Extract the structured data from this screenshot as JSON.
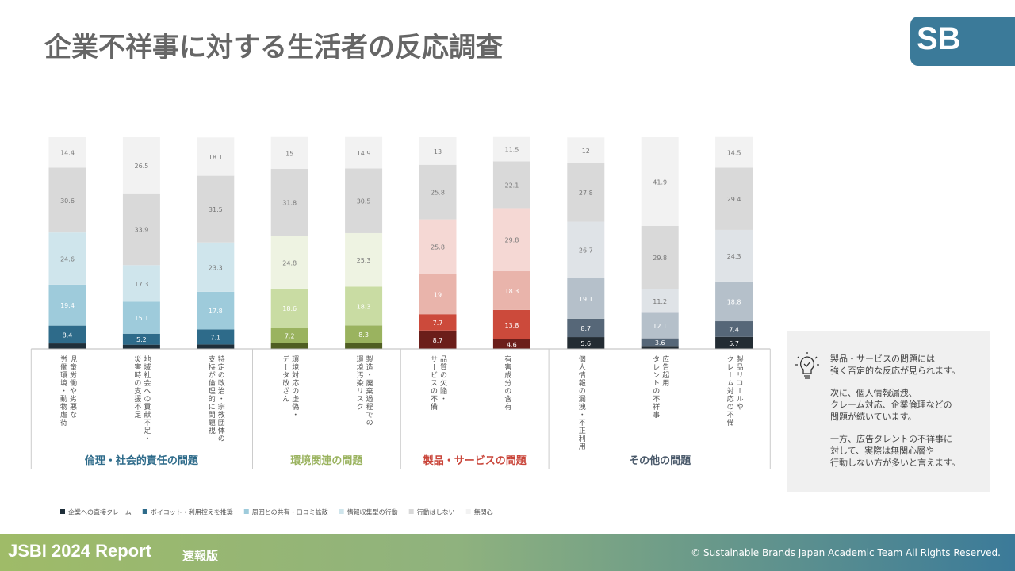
{
  "header": {
    "title": "企業不祥事に対する生活者の反応調査",
    "logo": "SB"
  },
  "chart_data": {
    "type": "stacked_bar",
    "ylim": [
      0,
      100
    ],
    "groups": [
      {
        "name": "倫理・社会的責任の問題",
        "color": "#2e6b8a",
        "segment_colors": [
          "#1f2f3a",
          "#2e6b8a",
          "#9ecbdb",
          "#cfe5ec",
          "#d9d9d9",
          "#f2f2f2"
        ],
        "categories": [
          "児童労働や劣悪な\n労働環境・動物虐待",
          "地域社会への貢献不足・\n災害時の支援不足",
          "特定の政治・宗教団体の\n支持が倫理的に問題視"
        ]
      },
      {
        "name": "環境関連の問題",
        "color": "#9ab35f",
        "segment_colors": [
          "#4f5e22",
          "#9ab35f",
          "#c9dca3",
          "#eef3e2",
          "#d9d9d9",
          "#f2f2f2"
        ],
        "categories": [
          "環境対応の虚偽・\nデータ改ざん",
          "製造・廃棄過程での\n環境汚染リスク"
        ]
      },
      {
        "name": "製品・サービスの問題",
        "color": "#c9453a",
        "segment_colors": [
          "#6b1e1a",
          "#cc4a3b",
          "#e9b4ab",
          "#f5d8d4",
          "#d9d9d9",
          "#f2f2f2"
        ],
        "categories": [
          "品質の欠陥・\nサービスの不備",
          "有害成分の含有"
        ]
      },
      {
        "name": "その他の問題",
        "color": "#4b5a6b",
        "segment_colors": [
          "#232c33",
          "#566778",
          "#b5c0ca",
          "#dfe3e7",
          "#d9d9d9",
          "#f2f2f2"
        ],
        "categories": [
          "個人情報の漏洩・不正利用",
          "広告起用\nタレントの不祥事",
          "製品リコールや\nクレーム対応の不備"
        ]
      }
    ],
    "series": [
      {
        "name": "企業への直接クレーム",
        "color": "#1f2f3a",
        "values": [
          2.6,
          2.0,
          2.1,
          2.7,
          2.8,
          8.7,
          4.6,
          5.6,
          1.4,
          5.7
        ]
      },
      {
        "name": "ボイコット・利用控えを推奨",
        "color": "#2e6b8a",
        "values": [
          8.4,
          5.2,
          7.1,
          7.2,
          8.3,
          7.7,
          13.8,
          8.7,
          3.6,
          7.4
        ]
      },
      {
        "name": "周囲との共有・口コミ拡散",
        "color": "#9ecbdb",
        "values": [
          19.4,
          15.1,
          17.8,
          18.6,
          18.3,
          19.0,
          18.3,
          19.1,
          12.1,
          18.8
        ]
      },
      {
        "name": "情報収集型の行動",
        "color": "#cfe5ec",
        "values": [
          24.6,
          17.3,
          23.3,
          24.8,
          25.3,
          25.8,
          29.8,
          26.7,
          11.2,
          24.3
        ]
      },
      {
        "name": "行動はしない",
        "color": "#d9d9d9",
        "values": [
          30.6,
          33.9,
          31.5,
          31.8,
          30.5,
          25.8,
          22.1,
          27.8,
          29.8,
          29.4
        ]
      },
      {
        "name": "無関心",
        "color": "#f2f2f2",
        "values": [
          14.4,
          26.5,
          18.1,
          15.0,
          14.9,
          13.0,
          11.5,
          12.0,
          41.9,
          14.5
        ]
      }
    ]
  },
  "note": {
    "paragraphs": [
      [
        "製品・サービスの問題には",
        "強く否定的な反応が見られます。"
      ],
      [
        "次に、個人情報漏洩、",
        "クレーム対応、企業倫理などの",
        "問題が続いています。"
      ],
      [
        "一方、広告タレントの不祥事に",
        "対して、実際は無関心層や",
        "行動しない方が多いと言えます。"
      ]
    ]
  },
  "footer": {
    "report": "JSBI 2024 Report",
    "edition": "速報版",
    "copyright": "© Sustainable Brands Japan Academic Team  All Rights Reserved."
  }
}
